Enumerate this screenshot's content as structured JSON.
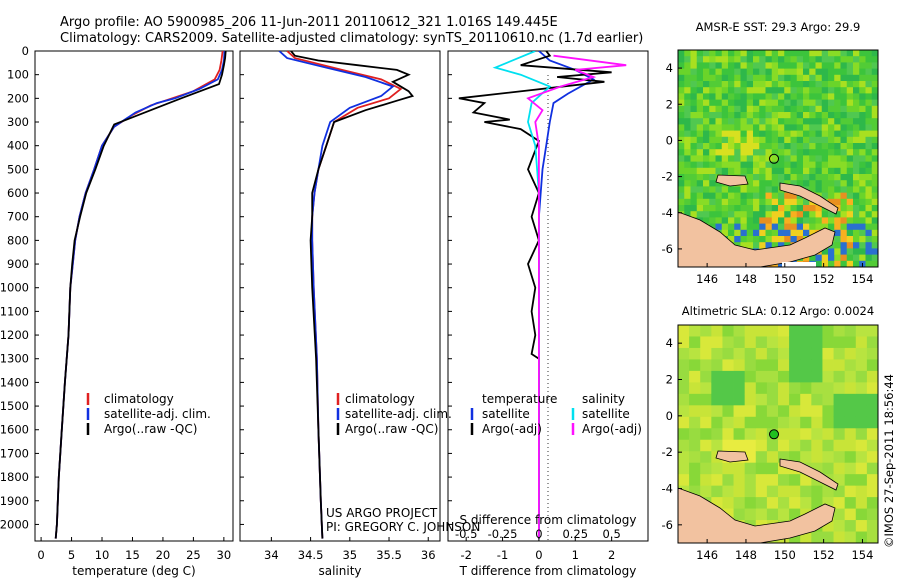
{
  "header": {
    "line1": "Argo profile: AO 5900985_206 11-Jun-2011 20110612_321 1.016S 149.445E",
    "line2": "Climatology: CARS2009. Satellite-adjusted climatology: synTS_20110610.nc (1.7d earlier)"
  },
  "colors": {
    "clim": "#e02020",
    "sat": "#1030e0",
    "argo": "#000000",
    "sal_sat": "#00e0f0",
    "sal_argo": "#ff10ff",
    "land": "#f2c2a0"
  },
  "depth_ticks": [
    "0",
    "100",
    "200",
    "300",
    "400",
    "500",
    "600",
    "700",
    "800",
    "900",
    "1000",
    "1100",
    "1200",
    "1300",
    "1400",
    "1500",
    "1600",
    "1700",
    "1800",
    "1900",
    "2000"
  ],
  "chart_data": [
    {
      "type": "line",
      "title": "temperature profile",
      "xlabel": "temperature (deg C)",
      "ylabel": "depth",
      "xlim": [
        -1,
        31.5
      ],
      "ylim": [
        2070,
        0
      ],
      "xticks": [
        "0",
        "5",
        "10",
        "15",
        "20",
        "25",
        "30"
      ],
      "legend": [
        "climatology",
        "satellite-adj. clim.",
        "Argo(..raw -QC)"
      ],
      "series": [
        {
          "name": "climatology",
          "color": "clim",
          "points": [
            [
              29.8,
              0
            ],
            [
              29.6,
              40
            ],
            [
              29.3,
              80
            ],
            [
              28.5,
              120
            ],
            [
              25,
              170
            ],
            [
              21.5,
              200
            ],
            [
              18,
              230
            ],
            [
              15,
              270
            ],
            [
              12,
              320
            ],
            [
              10,
              400
            ],
            [
              8.7,
              500
            ],
            [
              7.3,
              600
            ],
            [
              6.3,
              700
            ],
            [
              5.6,
              800
            ],
            [
              5.2,
              900
            ],
            [
              4.8,
              1000
            ],
            [
              4.5,
              1200
            ],
            [
              3.9,
              1400
            ],
            [
              3.4,
              1600
            ],
            [
              2.9,
              1800
            ],
            [
              2.6,
              2000
            ],
            [
              2.4,
              2060
            ]
          ]
        },
        {
          "name": "satellite-adj. clim.",
          "color": "sat",
          "points": [
            [
              30.1,
              0
            ],
            [
              30,
              40
            ],
            [
              29.7,
              80
            ],
            [
              29,
              120
            ],
            [
              26,
              160
            ],
            [
              22,
              200
            ],
            [
              19,
              220
            ],
            [
              15.5,
              260
            ],
            [
              12,
              320
            ],
            [
              10,
              400
            ],
            [
              8.7,
              500
            ],
            [
              7.3,
              600
            ],
            [
              6.3,
              700
            ],
            [
              5.6,
              800
            ],
            [
              5.2,
              900
            ],
            [
              4.8,
              1000
            ],
            [
              4.5,
              1200
            ],
            [
              3.9,
              1400
            ],
            [
              3.4,
              1600
            ],
            [
              2.9,
              1800
            ],
            [
              2.6,
              2000
            ],
            [
              2.4,
              2060
            ]
          ]
        },
        {
          "name": "Argo(..raw -QC)",
          "color": "argo",
          "points": [
            [
              30.3,
              0
            ],
            [
              30.2,
              30
            ],
            [
              30,
              60
            ],
            [
              29.7,
              100
            ],
            [
              29.2,
              140
            ],
            [
              23,
              200
            ],
            [
              19,
              240
            ],
            [
              15,
              280
            ],
            [
              12,
              310
            ],
            [
              10.3,
              400
            ],
            [
              8.9,
              500
            ],
            [
              7.4,
              600
            ],
            [
              6.4,
              700
            ],
            [
              5.5,
              800
            ],
            [
              5.1,
              900
            ],
            [
              4.8,
              1000
            ],
            [
              4.5,
              1200
            ],
            [
              3.9,
              1400
            ],
            [
              3.4,
              1600
            ],
            [
              2.9,
              1800
            ],
            [
              2.6,
              2000
            ],
            [
              2.4,
              2060
            ]
          ]
        }
      ]
    },
    {
      "type": "line",
      "title": "salinity profile",
      "xlabel": "salinity",
      "xlim": [
        33.6,
        36.15
      ],
      "ylim": [
        2070,
        0
      ],
      "xticks": [
        "34",
        "34.5",
        "35",
        "35.5",
        "36"
      ],
      "legend": [
        "climatology",
        "satellite-adj. clim.",
        "Argo(..raw -QC)"
      ],
      "credit": [
        "US ARGO PROJECT",
        "PI: GREGORY C. JOHNSON"
      ],
      "series": [
        {
          "name": "climatology",
          "color": "clim",
          "points": [
            [
              34.2,
              0
            ],
            [
              34.3,
              30
            ],
            [
              34.9,
              80
            ],
            [
              35.4,
              120
            ],
            [
              35.65,
              160
            ],
            [
              35.5,
              200
            ],
            [
              35.1,
              240
            ],
            [
              34.8,
              300
            ],
            [
              34.7,
              400
            ],
            [
              34.6,
              500
            ],
            [
              34.55,
              600
            ],
            [
              34.52,
              700
            ],
            [
              34.52,
              800
            ],
            [
              34.54,
              1000
            ],
            [
              34.58,
              1300
            ],
            [
              34.6,
              1600
            ],
            [
              34.63,
              1900
            ],
            [
              34.65,
              2060
            ]
          ]
        },
        {
          "name": "satellite-adj. clim.",
          "color": "sat",
          "points": [
            [
              34.1,
              0
            ],
            [
              34.2,
              30
            ],
            [
              34.7,
              70
            ],
            [
              35.2,
              110
            ],
            [
              35.55,
              150
            ],
            [
              35.4,
              190
            ],
            [
              35,
              240
            ],
            [
              34.75,
              300
            ],
            [
              34.65,
              400
            ],
            [
              34.6,
              500
            ],
            [
              34.55,
              600
            ],
            [
              34.52,
              700
            ],
            [
              34.52,
              800
            ],
            [
              34.54,
              1000
            ],
            [
              34.58,
              1300
            ],
            [
              34.6,
              1600
            ],
            [
              34.63,
              1900
            ],
            [
              34.65,
              2060
            ]
          ]
        },
        {
          "name": "Argo(..raw -QC)",
          "color": "argo",
          "points": [
            [
              34.25,
              0
            ],
            [
              34.3,
              20
            ],
            [
              34.6,
              40
            ],
            [
              35.1,
              60
            ],
            [
              35.6,
              80
            ],
            [
              35.75,
              100
            ],
            [
              35.55,
              130
            ],
            [
              35.75,
              170
            ],
            [
              35.8,
              190
            ],
            [
              35.6,
              210
            ],
            [
              35.2,
              250
            ],
            [
              34.8,
              300
            ],
            [
              34.7,
              400
            ],
            [
              34.6,
              500
            ],
            [
              34.52,
              600
            ],
            [
              34.52,
              700
            ],
            [
              34.5,
              800
            ],
            [
              34.52,
              1000
            ],
            [
              34.57,
              1300
            ],
            [
              34.6,
              1600
            ],
            [
              34.63,
              1900
            ],
            [
              34.65,
              2060
            ]
          ]
        }
      ]
    },
    {
      "type": "line",
      "title": "difference from climatology",
      "xlabel": "T difference from climatology",
      "xlabel_top": "S difference from climatology",
      "xlim": [
        -2.5,
        3
      ],
      "ylim": [
        2070,
        0
      ],
      "xticks": [
        "-2",
        "-1",
        "0",
        "1",
        "2"
      ],
      "xticks_top": [
        "-0.5",
        "-0.25",
        "0",
        "0.25",
        "0.5"
      ],
      "legend_temperature": {
        "title": "temperature",
        "items": [
          "satellite",
          "Argo(-adj)"
        ]
      },
      "legend_salinity": {
        "title": "salinity",
        "items": [
          "satellite",
          "Argo(-adj)"
        ]
      },
      "series": [
        {
          "name": "temperature satellite",
          "color": "sat",
          "points": [
            [
              0,
              0
            ],
            [
              0.3,
              40
            ],
            [
              1,
              80
            ],
            [
              1.5,
              120
            ],
            [
              0.8,
              180
            ],
            [
              0.4,
              220
            ],
            [
              0.3,
              300
            ],
            [
              0.2,
              400
            ],
            [
              0.1,
              500
            ],
            [
              0,
              700
            ],
            [
              0,
              2060
            ]
          ]
        },
        {
          "name": "temperature Argo(-adj)",
          "color": "argo",
          "points": [
            [
              0.2,
              0
            ],
            [
              0.3,
              20
            ],
            [
              -0.5,
              60
            ],
            [
              2.0,
              90
            ],
            [
              0.5,
              110
            ],
            [
              1.8,
              130
            ],
            [
              -2.2,
              200
            ],
            [
              -1.5,
              220
            ],
            [
              -1.8,
              260
            ],
            [
              -0.8,
              290
            ],
            [
              -1.5,
              300
            ],
            [
              -0.5,
              330
            ],
            [
              0,
              380
            ],
            [
              -0.3,
              500
            ],
            [
              0,
              600
            ],
            [
              -0.2,
              700
            ],
            [
              0,
              800
            ],
            [
              -0.3,
              900
            ],
            [
              -0.1,
              1000
            ],
            [
              -0.2,
              1100
            ],
            [
              -0.1,
              1200
            ],
            [
              -0.2,
              1280
            ],
            [
              0,
              1300
            ],
            [
              0,
              2060
            ]
          ]
        },
        {
          "name": "salinity satellite",
          "color": "sal_sat",
          "points": [
            [
              -0.1,
              0
            ],
            [
              -1.2,
              70
            ],
            [
              -0.5,
              100
            ],
            [
              0.3,
              150
            ],
            [
              -0.2,
              220
            ],
            [
              -0.3,
              300
            ],
            [
              -0.1,
              400
            ],
            [
              0,
              600
            ],
            [
              0,
              2060
            ]
          ]
        },
        {
          "name": "salinity Argo(-adj)",
          "color": "sal_argo",
          "points": [
            [
              0.4,
              20
            ],
            [
              2.4,
              60
            ],
            [
              1.0,
              80
            ],
            [
              1.5,
              110
            ],
            [
              0.6,
              150
            ],
            [
              -0.3,
              200
            ],
            [
              0.1,
              250
            ],
            [
              -0.1,
              300
            ],
            [
              0,
              400
            ],
            [
              0,
              2060
            ]
          ]
        }
      ]
    },
    {
      "type": "heatmap",
      "title": "AMSR-E SST: 29.3 Argo: 29.9",
      "xticks": [
        "146",
        "148",
        "150",
        "152",
        "154"
      ],
      "yticks": [
        "4",
        "2",
        "0",
        "-2",
        "-4",
        "-6"
      ],
      "xlim": [
        144.5,
        154.8
      ],
      "ylim": [
        -7,
        5
      ],
      "marker": {
        "lon": 149.445,
        "lat": -1.016
      }
    },
    {
      "type": "heatmap",
      "title": "Altimetric SLA: 0.12 Argo: 0.0024",
      "xticks": [
        "146",
        "148",
        "150",
        "152",
        "154"
      ],
      "yticks": [
        "4",
        "2",
        "0",
        "-2",
        "-4",
        "-6"
      ],
      "xlim": [
        144.5,
        154.8
      ],
      "ylim": [
        -7,
        5
      ],
      "marker": {
        "lon": 149.445,
        "lat": -1.016
      }
    }
  ],
  "footer": "©IMOS 27-Sep-2011 18:56:44"
}
